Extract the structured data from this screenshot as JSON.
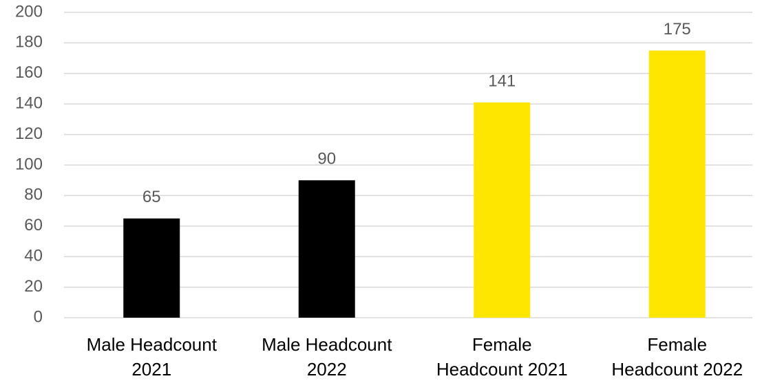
{
  "chart_data": {
    "type": "bar",
    "categories": [
      "Male Headcount 2021",
      "Male Headcount 2022",
      "Female Headcount 2021",
      "Female Headcount 2022"
    ],
    "values": [
      65,
      90,
      141,
      175
    ],
    "colors": [
      "#000000",
      "#000000",
      "#ffe600",
      "#ffe600"
    ],
    "ylim": [
      0,
      200
    ],
    "yticks": [
      0,
      20,
      40,
      60,
      80,
      100,
      120,
      140,
      160,
      180,
      200
    ],
    "grid": true
  }
}
